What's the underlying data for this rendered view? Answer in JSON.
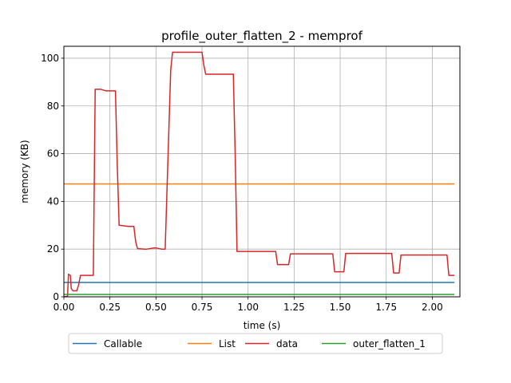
{
  "chart_data": {
    "type": "line",
    "title": "profile_outer_flatten_2 - memprof",
    "xlabel": "time (s)",
    "ylabel": "memory (KB)",
    "xlim": [
      0,
      2.15
    ],
    "ylim": [
      0,
      105
    ],
    "xticks": [
      0.0,
      0.25,
      0.5,
      0.75,
      1.0,
      1.25,
      1.5,
      1.75,
      2.0
    ],
    "xtick_labels": [
      "0.00",
      "0.25",
      "0.50",
      "0.75",
      "1.00",
      "1.25",
      "1.50",
      "1.75",
      "2.00"
    ],
    "yticks": [
      0,
      20,
      40,
      60,
      80,
      100
    ],
    "ytick_labels": [
      "0",
      "20",
      "40",
      "60",
      "80",
      "100"
    ],
    "grid": true,
    "legend_position": "bottom-center-outside",
    "series": [
      {
        "name": "Callable",
        "color": "#1f77b4",
        "x": [
          0.0,
          2.12
        ],
        "y": [
          6.0,
          6.0
        ]
      },
      {
        "name": "List",
        "color": "#ff7f0e",
        "x": [
          0.0,
          2.12
        ],
        "y": [
          47.3,
          47.3
        ]
      },
      {
        "name": "data",
        "color": "#d62728",
        "x": [
          0.0,
          0.02,
          0.025,
          0.035,
          0.04,
          0.05,
          0.06,
          0.07,
          0.08,
          0.09,
          0.1,
          0.16,
          0.17,
          0.2,
          0.22,
          0.23,
          0.28,
          0.29,
          0.3,
          0.35,
          0.36,
          0.38,
          0.39,
          0.4,
          0.44,
          0.45,
          0.49,
          0.5,
          0.53,
          0.54,
          0.55,
          0.58,
          0.59,
          0.6,
          0.75,
          0.76,
          0.77,
          0.92,
          0.93,
          0.94,
          1.15,
          1.16,
          1.22,
          1.23,
          1.46,
          1.47,
          1.52,
          1.53,
          1.78,
          1.79,
          1.82,
          1.83,
          2.08,
          2.09,
          2.12
        ],
        "y": [
          0.0,
          0.2,
          9.5,
          9.0,
          3.5,
          2.5,
          2.5,
          2.5,
          5.0,
          9.0,
          9.0,
          9.0,
          87.0,
          87.0,
          86.5,
          86.3,
          86.3,
          55.0,
          30.0,
          29.5,
          29.5,
          29.5,
          23.0,
          20.2,
          20.0,
          20.0,
          20.5,
          20.5,
          20.0,
          20.0,
          20.0,
          95.0,
          102.5,
          102.5,
          102.5,
          97.0,
          93.3,
          93.3,
          60.0,
          19.0,
          19.0,
          13.5,
          13.5,
          18.0,
          18.0,
          10.5,
          10.5,
          18.2,
          18.2,
          10.0,
          10.0,
          17.5,
          17.5,
          9.0,
          9.0
        ]
      },
      {
        "name": "outer_flatten_1",
        "color": "#2ca02c",
        "x": [
          0.0,
          2.12
        ],
        "y": [
          1.0,
          1.0
        ]
      }
    ]
  }
}
